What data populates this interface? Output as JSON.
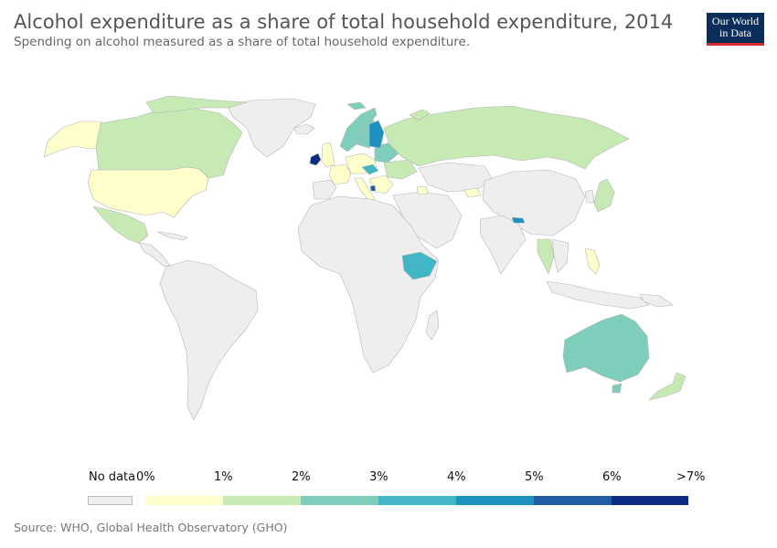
{
  "header": {
    "title": "Alcohol expenditure as a share of total household expenditure, 2014",
    "subtitle": "Spending on alcohol measured as a share of total household expenditure."
  },
  "logo": {
    "line1": "Our World",
    "line2": "in Data"
  },
  "legend": {
    "no_data_label": "No data",
    "no_data_color": "#eeeeee",
    "tick_labels": [
      "0%",
      "1%",
      "2%",
      "3%",
      "4%",
      "5%",
      "6%",
      ">7%"
    ],
    "bin_colors": [
      "#ffffcc",
      "#c7e9b4",
      "#7fcdbb",
      "#41b6c4",
      "#1d91c0",
      "#225ea8",
      "#0c2c84"
    ]
  },
  "source": "Source: WHO, Global Health Observatory (GHO)",
  "colors": {
    "land_no_data": "#eeeeee",
    "border": "#bbbbbb"
  }
}
